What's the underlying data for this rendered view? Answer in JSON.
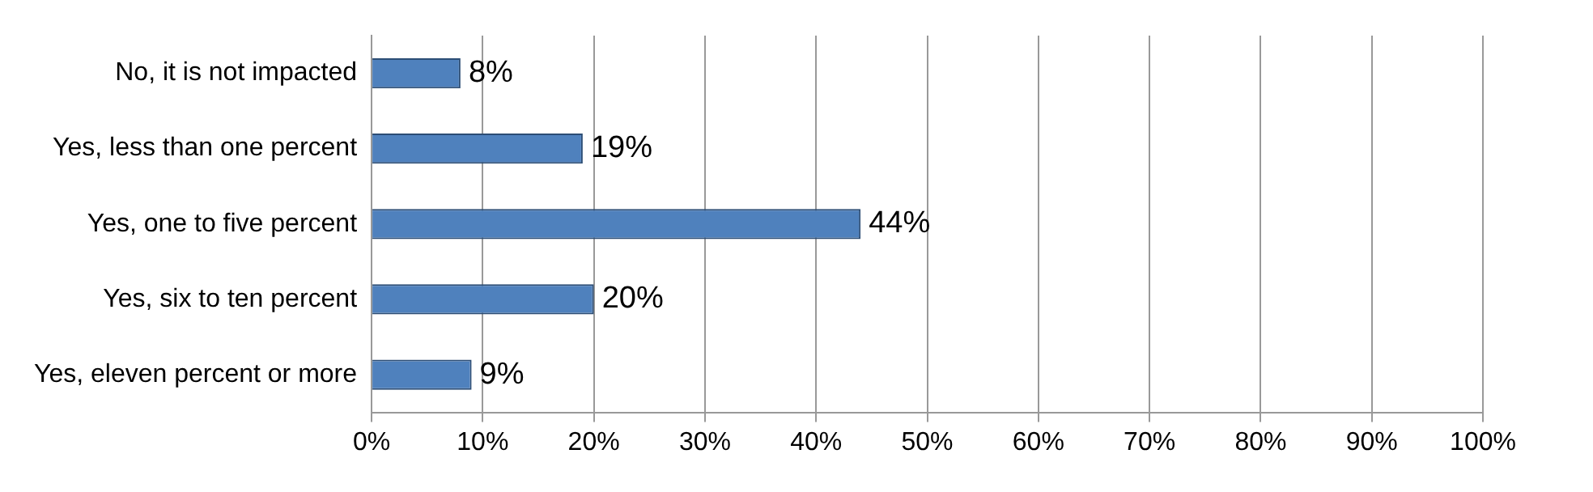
{
  "chart_data": {
    "type": "bar",
    "orientation": "horizontal",
    "categories": [
      "No, it is not impacted",
      "Yes, less than one percent",
      "Yes, one to five percent",
      "Yes, six to ten percent",
      "Yes, eleven percent or more"
    ],
    "values": [
      8,
      19,
      44,
      20,
      9
    ],
    "value_labels": [
      "8%",
      "19%",
      "44%",
      "20%",
      "9%"
    ],
    "color": "#4f81bd",
    "xlim": [
      0,
      100
    ],
    "xticks": [
      {
        "value": 0,
        "label": "0%"
      },
      {
        "value": 10,
        "label": "10%"
      },
      {
        "value": 20,
        "label": "20%"
      },
      {
        "value": 30,
        "label": "30%"
      },
      {
        "value": 40,
        "label": "40%"
      },
      {
        "value": 50,
        "label": "50%"
      },
      {
        "value": 60,
        "label": "60%"
      },
      {
        "value": 70,
        "label": "70%"
      },
      {
        "value": 80,
        "label": "80%"
      },
      {
        "value": 90,
        "label": "90%"
      },
      {
        "value": 100,
        "label": "100%"
      }
    ],
    "grid": "x",
    "legend": false
  }
}
